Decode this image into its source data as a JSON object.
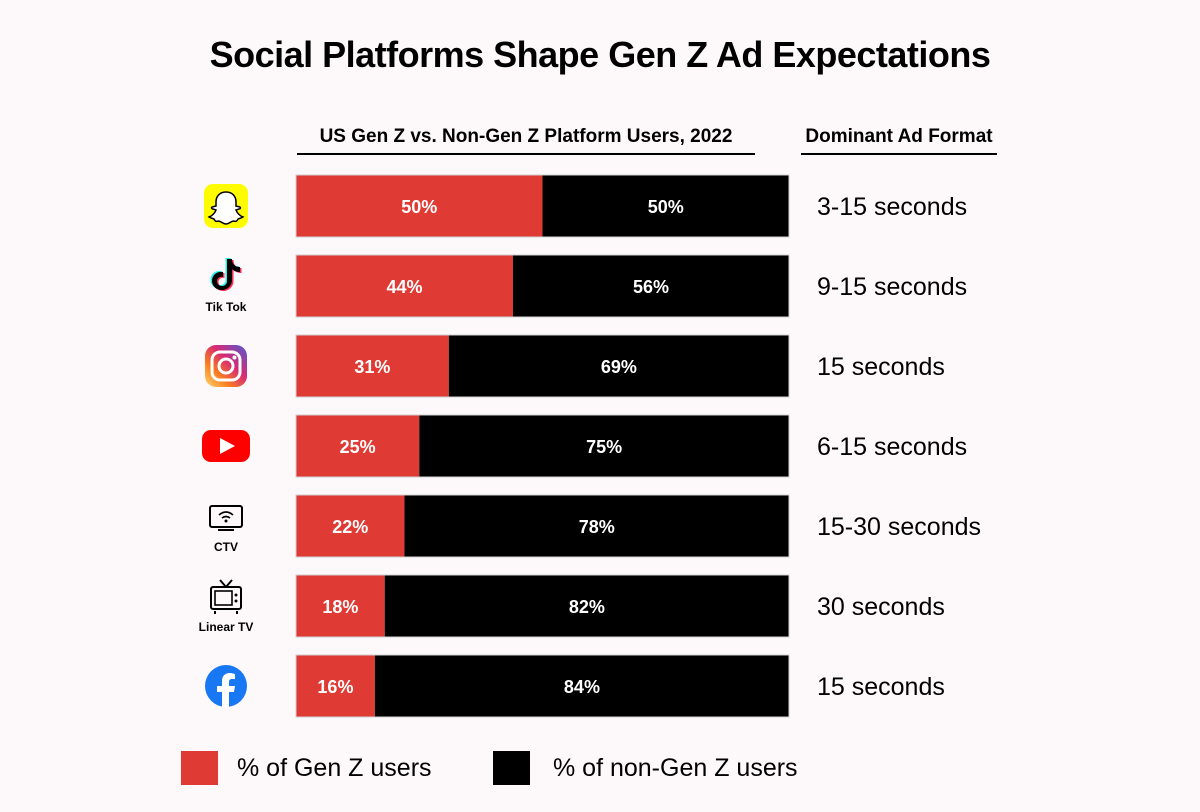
{
  "title": "Social Platforms Shape Gen Z Ad Expectations",
  "columns": {
    "chart_header": "US Gen Z vs. Non-Gen Z Platform Users, 2022",
    "format_header": "Dominant Ad Format"
  },
  "chart_data": {
    "type": "bar",
    "stacked": true,
    "orientation": "horizontal",
    "title": "US Gen Z vs. Non-Gen Z Platform Users, 2022",
    "categories": [
      "Snapchat",
      "Tik Tok",
      "Instagram",
      "YouTube",
      "CTV",
      "Linear TV",
      "Facebook"
    ],
    "series": [
      {
        "name": "% of Gen Z users",
        "color": "#e03a34",
        "values": [
          50,
          44,
          31,
          25,
          22,
          18,
          16
        ]
      },
      {
        "name": "% of non-Gen Z users",
        "color": "#000000",
        "values": [
          50,
          56,
          69,
          75,
          78,
          82,
          84
        ]
      }
    ],
    "xlim": [
      0,
      100
    ],
    "data_labels": [
      [
        "50%",
        "50%"
      ],
      [
        "44%",
        "56%"
      ],
      [
        "31%",
        "69%"
      ],
      [
        "25%",
        "75%"
      ],
      [
        "22%",
        "78%"
      ],
      [
        "18%",
        "82%"
      ],
      [
        "16%",
        "84%"
      ]
    ]
  },
  "platforms": [
    {
      "icon": "snapchat-icon",
      "label": "",
      "ad_format": "3-15 seconds"
    },
    {
      "icon": "tiktok-icon",
      "label": "Tik Tok",
      "ad_format": "9-15 seconds"
    },
    {
      "icon": "instagram-icon",
      "label": "",
      "ad_format": "15 seconds"
    },
    {
      "icon": "youtube-icon",
      "label": "",
      "ad_format": "6-15 seconds"
    },
    {
      "icon": "ctv-icon",
      "label": "CTV",
      "ad_format": "15-30 seconds"
    },
    {
      "icon": "linear-tv-icon",
      "label": "Linear TV",
      "ad_format": "30 seconds"
    },
    {
      "icon": "facebook-icon",
      "label": "",
      "ad_format": "15 seconds"
    }
  ],
  "legend": [
    {
      "label": "% of Gen Z users",
      "color": "#e03a34"
    },
    {
      "label": "% of non-Gen Z users",
      "color": "#000000"
    }
  ]
}
